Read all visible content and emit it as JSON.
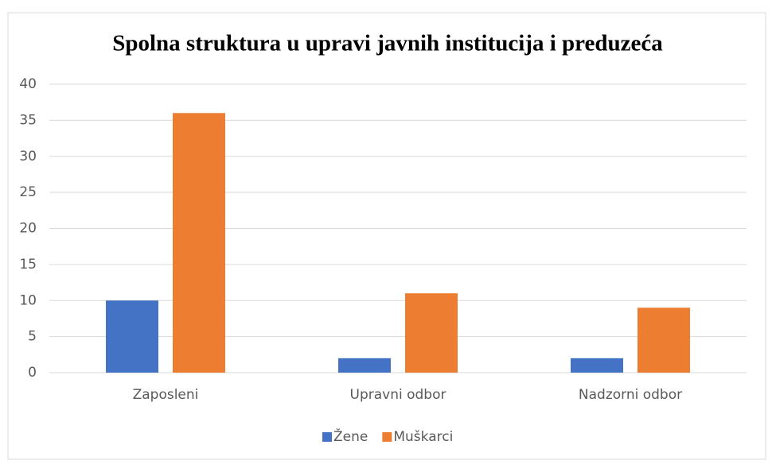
{
  "chart_data": {
    "type": "bar",
    "title": "Spolna struktura u upravi javnih institucija i preduzeća",
    "categories": [
      "Zaposleni",
      "Upravni odbor",
      "Nadzorni odbor"
    ],
    "series": [
      {
        "name": "Žene",
        "color": "#4472c4",
        "values": [
          10,
          2,
          2
        ]
      },
      {
        "name": "Muškarci",
        "color": "#ed7d31",
        "values": [
          36,
          11,
          9
        ]
      }
    ],
    "ylim": [
      0,
      40
    ],
    "yticks": [
      0,
      5,
      10,
      15,
      20,
      25,
      30,
      35,
      40
    ],
    "grid": true,
    "legend": "bottom"
  }
}
